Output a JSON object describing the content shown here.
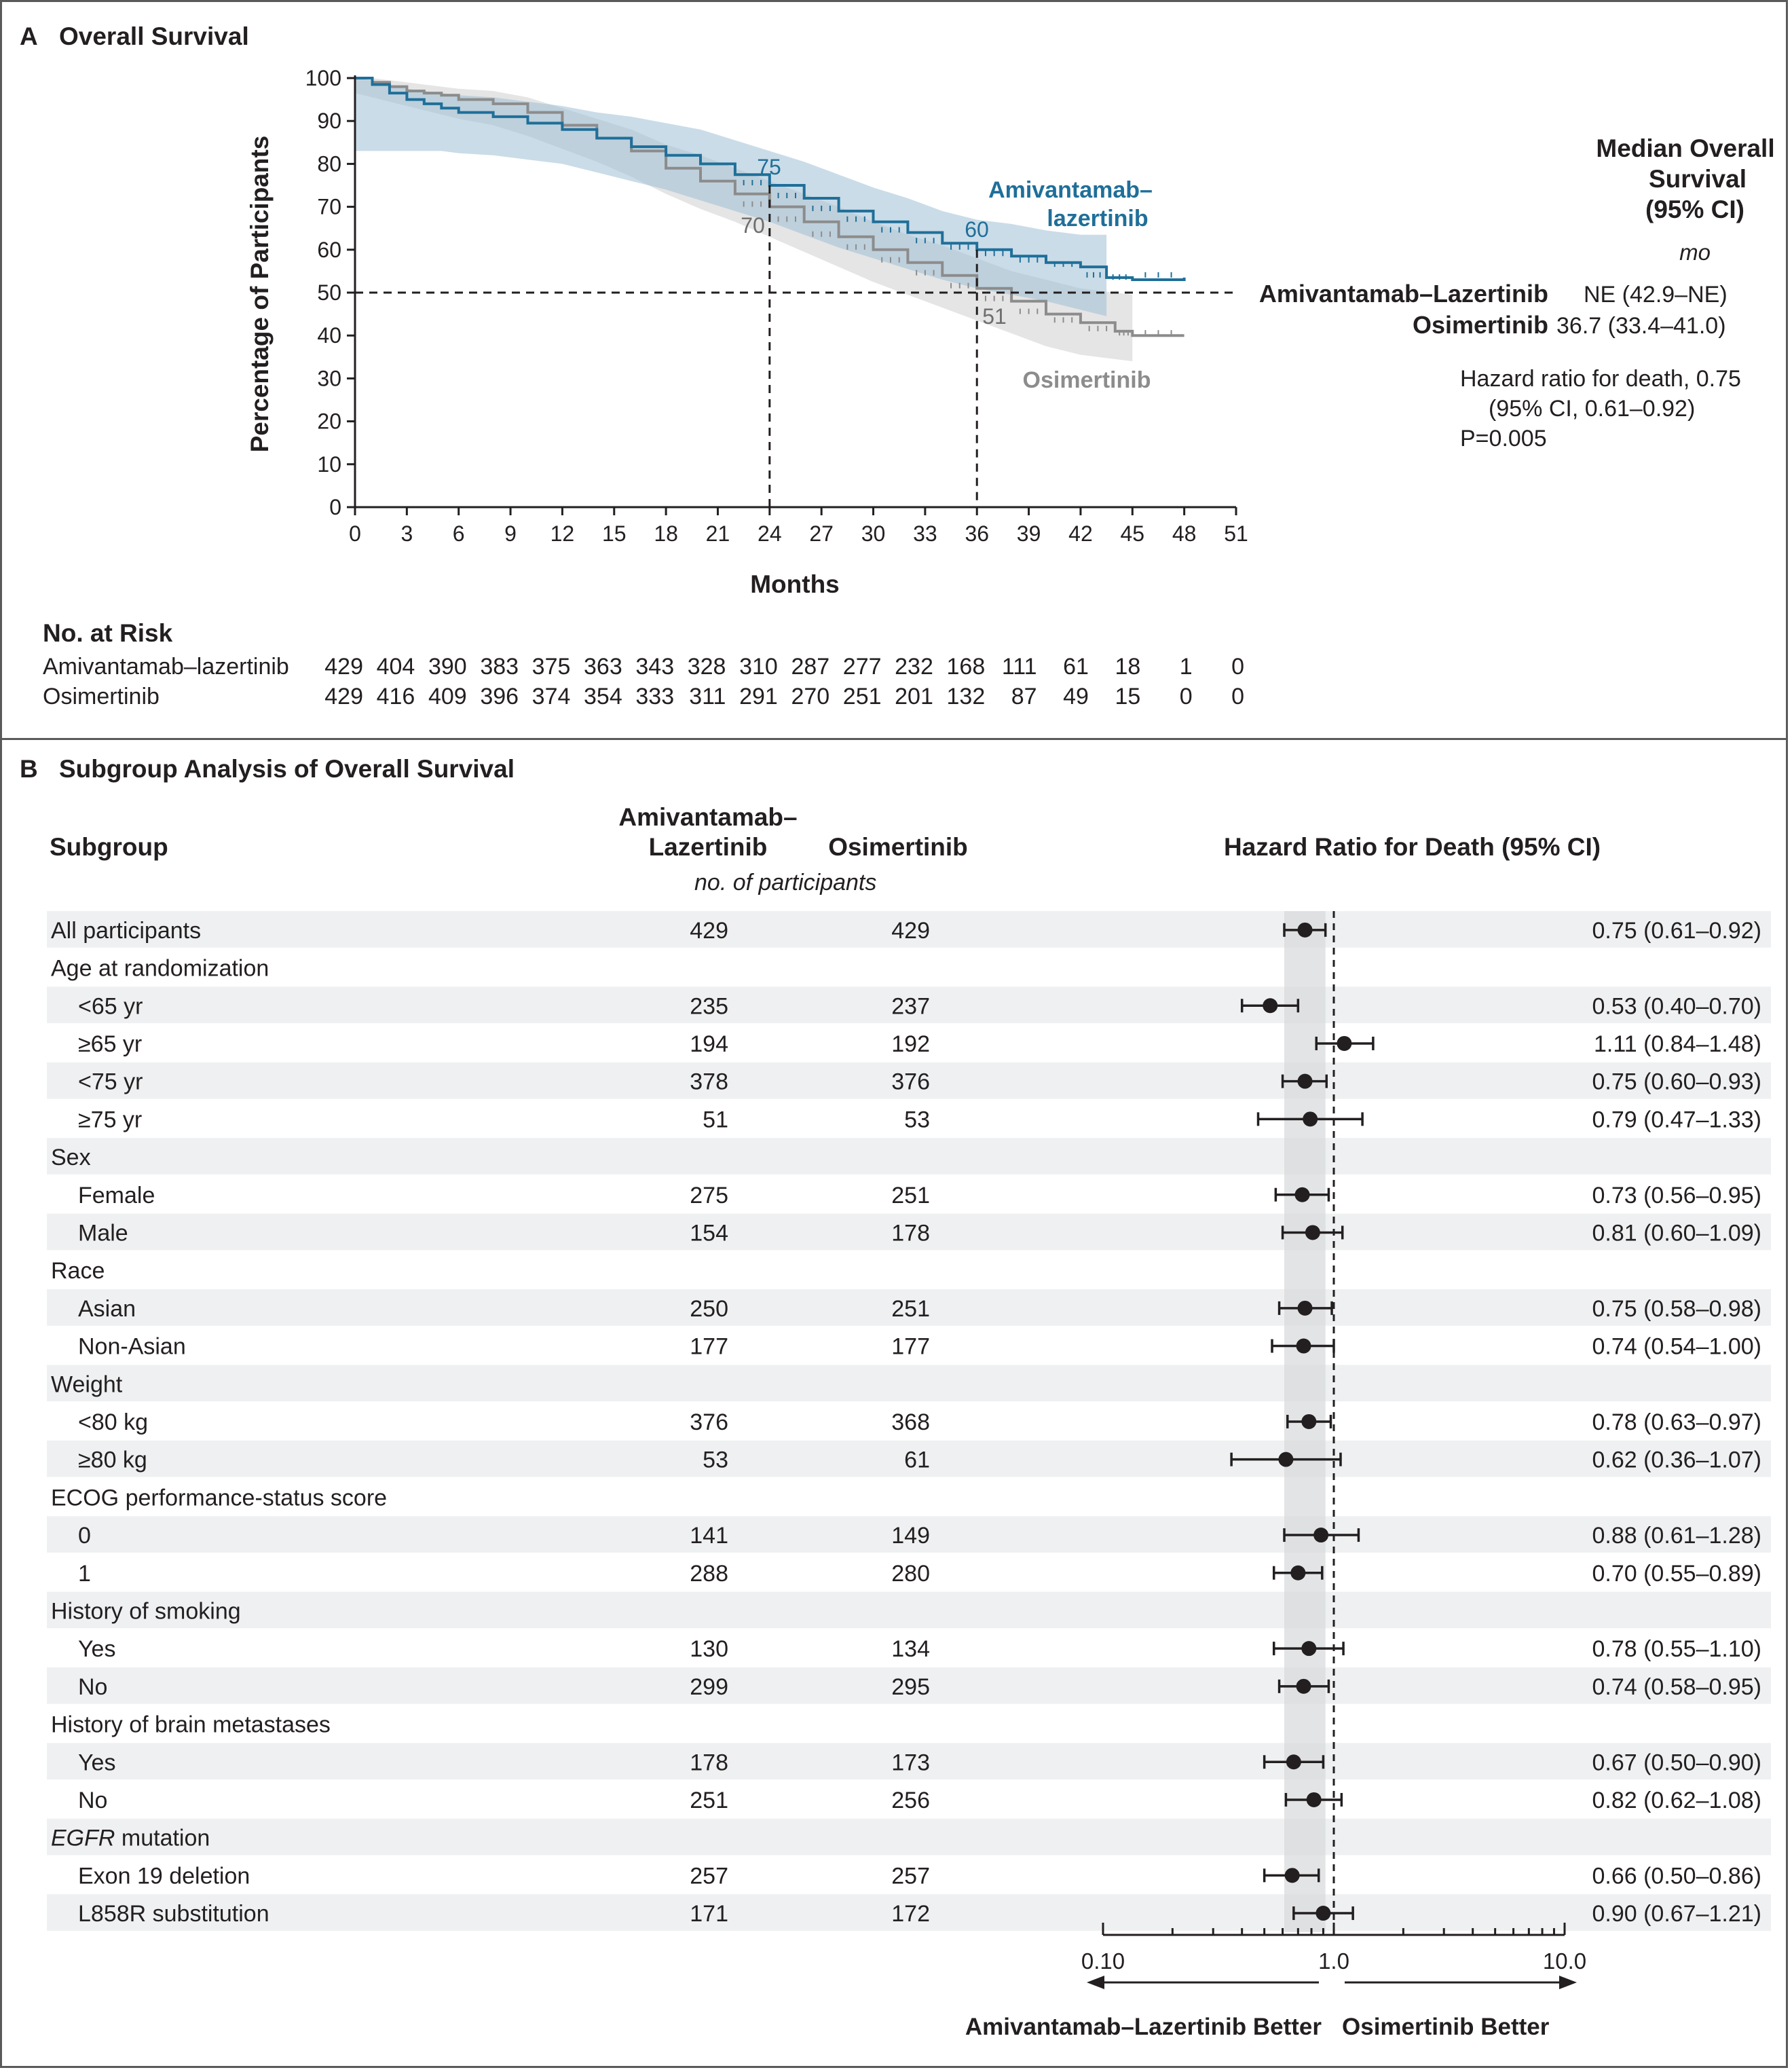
{
  "panel_a": {
    "label": "A",
    "title": "Overall Survival",
    "ylabel": "Percentage of Participants",
    "xlabel": "Months",
    "yticks": [
      0,
      10,
      20,
      30,
      40,
      50,
      60,
      70,
      80,
      90,
      100
    ],
    "xticks": [
      0,
      3,
      6,
      9,
      12,
      15,
      18,
      21,
      24,
      27,
      30,
      33,
      36,
      39,
      42,
      45,
      48,
      51
    ],
    "series_labels": {
      "amivantamab_line1": "Amivantamab–",
      "amivantamab_line2": "lazertinib",
      "osimertinib": "Osimertinib"
    },
    "annotations": {
      "a24": "75",
      "o24": "70",
      "a36": "60",
      "o36": "51"
    },
    "median_box": {
      "title_line1": "Median Overall",
      "title_line2": "Survival",
      "title_line3": "(95% CI)",
      "unit": "mo",
      "row1_name": "Amivantamab–Lazertinib",
      "row1_value": "NE (42.9–NE)",
      "row2_name": "Osimertinib",
      "row2_value": "36.7 (33.4–41.0)",
      "hr_line1": "Hazard ratio for death, 0.75",
      "hr_line2": "(95% CI, 0.61–0.92)",
      "hr_line3": "P=0.005"
    },
    "risk": {
      "title": "No. at Risk",
      "rows": [
        {
          "name": "Amivantamab–lazertinib",
          "values": [
            "429",
            "404",
            "390",
            "383",
            "375",
            "363",
            "343",
            "328",
            "310",
            "287",
            "277",
            "232",
            "168",
            "111",
            "61",
            "18",
            "1",
            "0"
          ]
        },
        {
          "name": "Osimertinib",
          "values": [
            "429",
            "416",
            "409",
            "396",
            "374",
            "354",
            "333",
            "311",
            "291",
            "270",
            "251",
            "201",
            "132",
            "87",
            "49",
            "15",
            "0",
            "0"
          ]
        }
      ]
    }
  },
  "chart_data": [
    {
      "type": "line",
      "title": "Overall Survival",
      "xlabel": "Months",
      "ylabel": "Percentage of Participants",
      "xlim": [
        0,
        51
      ],
      "ylim": [
        0,
        100
      ],
      "grid": false,
      "series": [
        {
          "name": "Amivantamab–lazertinib",
          "color": "#1f6f99",
          "x": [
            0,
            1,
            2,
            3,
            4,
            5,
            6,
            8,
            10,
            12,
            14,
            16,
            18,
            20,
            22,
            24,
            26,
            28,
            30,
            32,
            34,
            36,
            38,
            40,
            42,
            43.5,
            45,
            48
          ],
          "y": [
            100,
            98.5,
            96.5,
            95,
            94,
            93,
            92,
            91,
            89.5,
            88,
            86,
            84,
            82,
            80,
            77.5,
            75,
            72,
            69,
            66.5,
            64,
            61.5,
            60,
            58.5,
            57,
            56,
            53.5,
            53,
            53.5
          ],
          "ci_upper": [
            100,
            99.5,
            98.5,
            97.5,
            97,
            96.5,
            96,
            95.5,
            94.5,
            93.5,
            92,
            91,
            89.5,
            88,
            85.5,
            83,
            80.5,
            77.5,
            74.5,
            72,
            69,
            67,
            66,
            64.5,
            63.5,
            63.5
          ],
          "ci_lower": [
            83,
            83,
            83,
            83,
            83,
            83,
            82.5,
            82,
            81,
            80,
            78,
            76,
            74,
            71.5,
            69,
            66.5,
            63.5,
            60.5,
            58,
            55.5,
            53,
            51,
            49.5,
            48,
            46,
            44.5
          ]
        },
        {
          "name": "Osimertinib",
          "color": "#8c8c8c",
          "x": [
            0,
            1,
            2,
            3,
            4,
            5,
            6,
            8,
            10,
            12,
            14,
            16,
            18,
            20,
            22,
            24,
            26,
            28,
            30,
            32,
            34,
            36,
            38,
            40,
            42,
            44,
            45,
            48
          ],
          "y": [
            100,
            99,
            98,
            97,
            96.5,
            96,
            95,
            94,
            92,
            89,
            86,
            83,
            79,
            76,
            73,
            70,
            66.5,
            63,
            60,
            57,
            54,
            51,
            48,
            45,
            43,
            41,
            40,
            40
          ],
          "ci_upper": [
            100,
            100,
            99.5,
            99,
            98.5,
            98,
            97.5,
            97,
            95.5,
            93,
            90.5,
            88,
            84.5,
            82,
            79,
            76,
            73,
            70,
            66.5,
            63.5,
            61,
            58,
            55,
            53,
            51,
            50,
            49.5
          ],
          "ci_lower": [
            96.5,
            95.5,
            94.5,
            93.5,
            92.5,
            91.5,
            90.5,
            89,
            86.5,
            83.5,
            80.5,
            77,
            73,
            69.5,
            66.5,
            63,
            59.5,
            56,
            52.5,
            49.5,
            46.5,
            43.5,
            40.5,
            37.5,
            35.5,
            34.5,
            34
          ]
        }
      ]
    },
    {
      "type": "scatter",
      "title": "Subgroup Analysis of Overall Survival",
      "xlabel": "Hazard Ratio for Death (95% CI)",
      "xscale": "log",
      "xlim": [
        0.1,
        10.0
      ],
      "reference_line": 1.0,
      "overall_ci_band": [
        0.61,
        0.92
      ],
      "rows": [
        {
          "label": "All participants",
          "indent": 0,
          "ami": "429",
          "osi": "429",
          "hr": 0.75,
          "lo": 0.61,
          "hi": 0.92,
          "text": "0.75 (0.61–0.92)"
        },
        {
          "label": "Age at randomization",
          "indent": 0,
          "header": true
        },
        {
          "label": "<65 yr",
          "indent": 1,
          "ami": "235",
          "osi": "237",
          "hr": 0.53,
          "lo": 0.4,
          "hi": 0.7,
          "text": "0.53 (0.40–0.70)"
        },
        {
          "label": "≥65 yr",
          "indent": 1,
          "ami": "194",
          "osi": "192",
          "hr": 1.11,
          "lo": 0.84,
          "hi": 1.48,
          "text": "1.11 (0.84–1.48)"
        },
        {
          "label": "<75 yr",
          "indent": 1,
          "ami": "378",
          "osi": "376",
          "hr": 0.75,
          "lo": 0.6,
          "hi": 0.93,
          "text": "0.75 (0.60–0.93)"
        },
        {
          "label": "≥75 yr",
          "indent": 1,
          "ami": "51",
          "osi": "53",
          "hr": 0.79,
          "lo": 0.47,
          "hi": 1.33,
          "text": "0.79 (0.47–1.33)"
        },
        {
          "label": "Sex",
          "indent": 0,
          "header": true
        },
        {
          "label": "Female",
          "indent": 1,
          "ami": "275",
          "osi": "251",
          "hr": 0.73,
          "lo": 0.56,
          "hi": 0.95,
          "text": "0.73 (0.56–0.95)"
        },
        {
          "label": "Male",
          "indent": 1,
          "ami": "154",
          "osi": "178",
          "hr": 0.81,
          "lo": 0.6,
          "hi": 1.09,
          "text": "0.81 (0.60–1.09)"
        },
        {
          "label": "Race",
          "indent": 0,
          "header": true
        },
        {
          "label": "Asian",
          "indent": 1,
          "ami": "250",
          "osi": "251",
          "hr": 0.75,
          "lo": 0.58,
          "hi": 0.98,
          "text": "0.75 (0.58–0.98)"
        },
        {
          "label": "Non-Asian",
          "indent": 1,
          "ami": "177",
          "osi": "177",
          "hr": 0.74,
          "lo": 0.54,
          "hi": 1.0,
          "text": "0.74 (0.54–1.00)"
        },
        {
          "label": "Weight",
          "indent": 0,
          "header": true
        },
        {
          "label": "<80 kg",
          "indent": 1,
          "ami": "376",
          "osi": "368",
          "hr": 0.78,
          "lo": 0.63,
          "hi": 0.97,
          "text": "0.78 (0.63–0.97)"
        },
        {
          "label": "≥80 kg",
          "indent": 1,
          "ami": "53",
          "osi": "61",
          "hr": 0.62,
          "lo": 0.36,
          "hi": 1.07,
          "text": "0.62 (0.36–1.07)"
        },
        {
          "label": "ECOG performance-status score",
          "indent": 0,
          "header": true
        },
        {
          "label": "0",
          "indent": 1,
          "ami": "141",
          "osi": "149",
          "hr": 0.88,
          "lo": 0.61,
          "hi": 1.28,
          "text": "0.88 (0.61–1.28)"
        },
        {
          "label": "1",
          "indent": 1,
          "ami": "288",
          "osi": "280",
          "hr": 0.7,
          "lo": 0.55,
          "hi": 0.89,
          "text": "0.70 (0.55–0.89)"
        },
        {
          "label": "History of smoking",
          "indent": 0,
          "header": true
        },
        {
          "label": "Yes",
          "indent": 1,
          "ami": "130",
          "osi": "134",
          "hr": 0.78,
          "lo": 0.55,
          "hi": 1.1,
          "text": "0.78 (0.55–1.10)"
        },
        {
          "label": "No",
          "indent": 1,
          "ami": "299",
          "osi": "295",
          "hr": 0.74,
          "lo": 0.58,
          "hi": 0.95,
          "text": "0.74 (0.58–0.95)"
        },
        {
          "label": "History of brain metastases",
          "indent": 0,
          "header": true
        },
        {
          "label": "Yes",
          "indent": 1,
          "ami": "178",
          "osi": "173",
          "hr": 0.67,
          "lo": 0.5,
          "hi": 0.9,
          "text": "0.67 (0.50–0.90)"
        },
        {
          "label": "No",
          "indent": 1,
          "ami": "251",
          "osi": "256",
          "hr": 0.82,
          "lo": 0.62,
          "hi": 1.08,
          "text": "0.82 (0.62–1.08)"
        },
        {
          "label": "EGFR",
          "label_suffix": " mutation",
          "italic_prefix": true,
          "indent": 0,
          "header": true
        },
        {
          "label": "Exon 19 deletion",
          "indent": 1,
          "ami": "257",
          "osi": "257",
          "hr": 0.66,
          "lo": 0.5,
          "hi": 0.86,
          "text": "0.66 (0.50–0.86)"
        },
        {
          "label": "L858R substitution",
          "indent": 1,
          "ami": "171",
          "osi": "172",
          "hr": 0.9,
          "lo": 0.67,
          "hi": 1.21,
          "text": "0.90 (0.67–1.21)"
        }
      ]
    }
  ],
  "panel_b": {
    "label": "B",
    "title": "Subgroup Analysis of Overall Survival",
    "col_subgroup": "Subgroup",
    "col_ami_line1": "Amivantamab–",
    "col_ami_line2": "Lazertinib",
    "col_osi": "Osimertinib",
    "col_units": "no. of participants",
    "col_hr": "Hazard Ratio for Death (95% CI)",
    "axis_ticks": [
      "0.10",
      "1.0",
      "10.0"
    ],
    "left_better": "Amivantamab–Lazertinib Better",
    "right_better": "Osimertinib Better"
  }
}
